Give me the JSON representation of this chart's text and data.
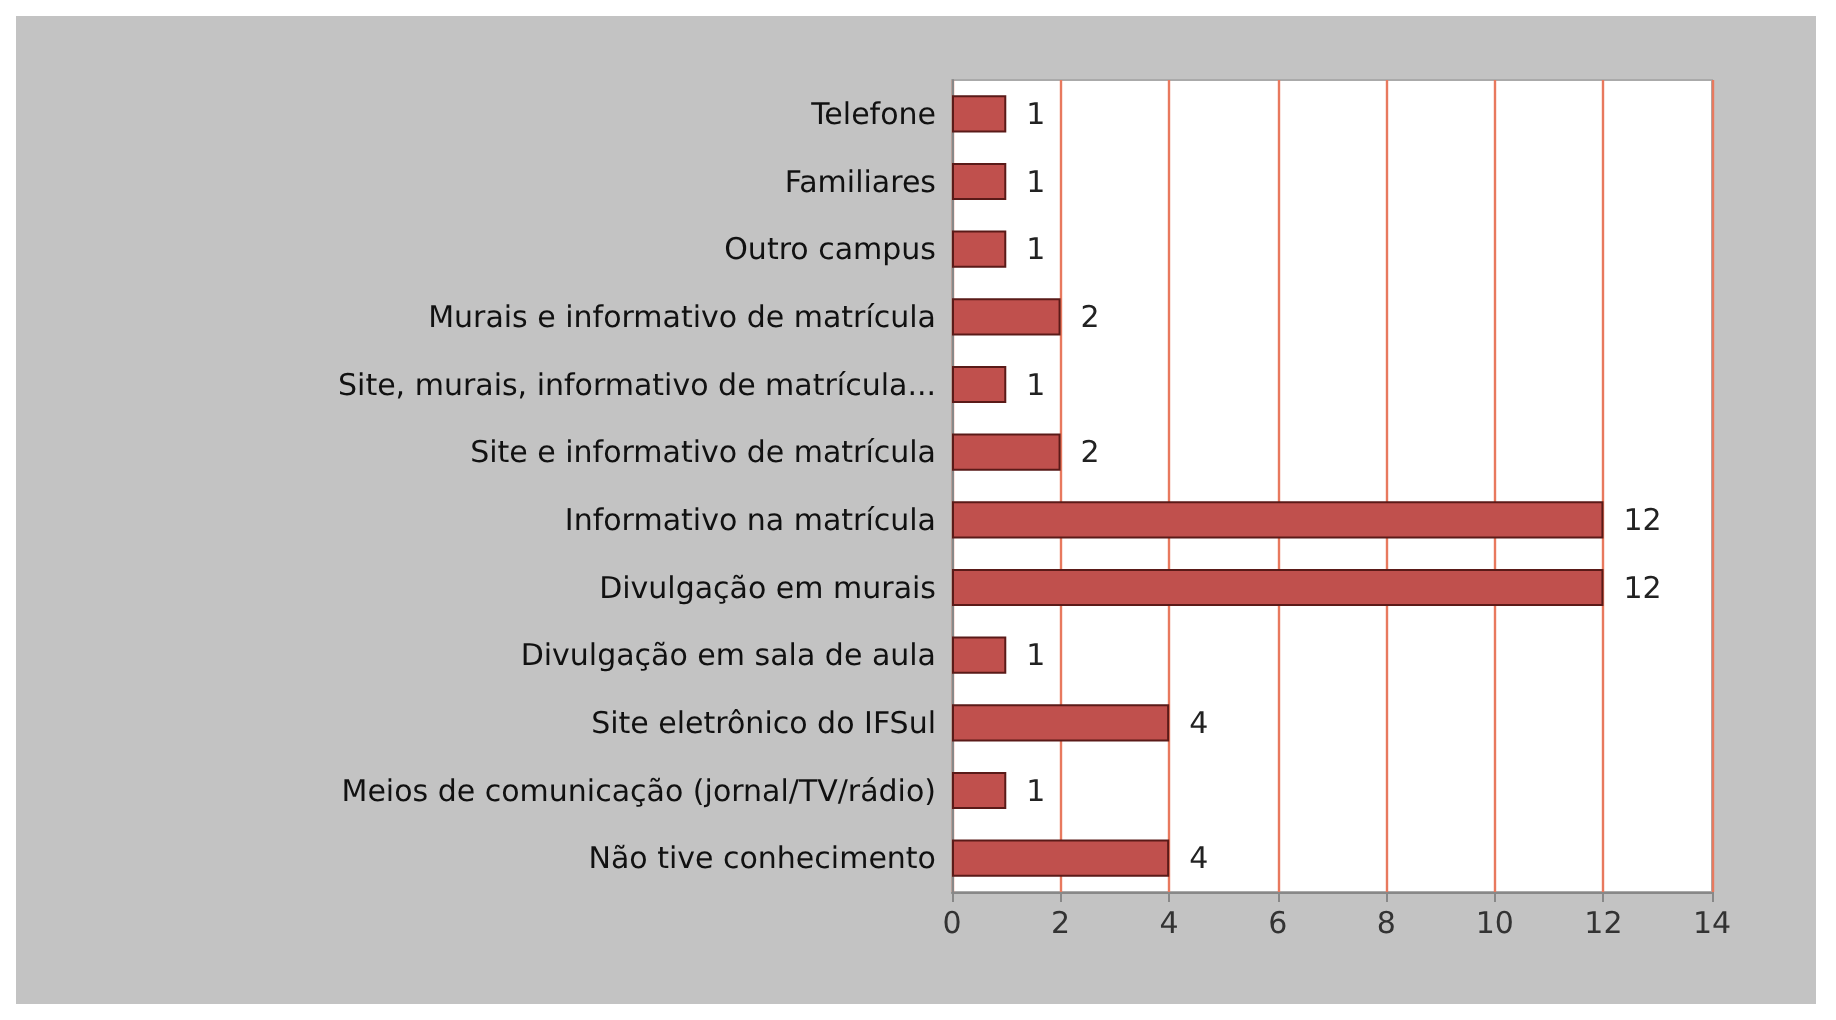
{
  "chart_data": {
    "type": "bar",
    "orientation": "horizontal",
    "categories": [
      "Telefone",
      "Familiares",
      "Outro campus",
      "Murais e informativo de matrícula",
      "Site, murais, informativo de matrícula...",
      "Site e informativo de matrícula",
      "Informativo na matrícula",
      "Divulgação em murais",
      "Divulgação em sala de aula",
      "Site eletrônico do IFSul",
      "Meios de comunicação (jornal/TV/rádio)",
      "Não tive conhecimento"
    ],
    "values": [
      1,
      1,
      1,
      2,
      1,
      2,
      12,
      12,
      1,
      4,
      1,
      4
    ],
    "color": "#c0504d",
    "xlim": [
      0,
      14
    ],
    "xticks": [
      0,
      2,
      4,
      6,
      8,
      10,
      12,
      14
    ],
    "grid": "x",
    "data_labels": true
  }
}
